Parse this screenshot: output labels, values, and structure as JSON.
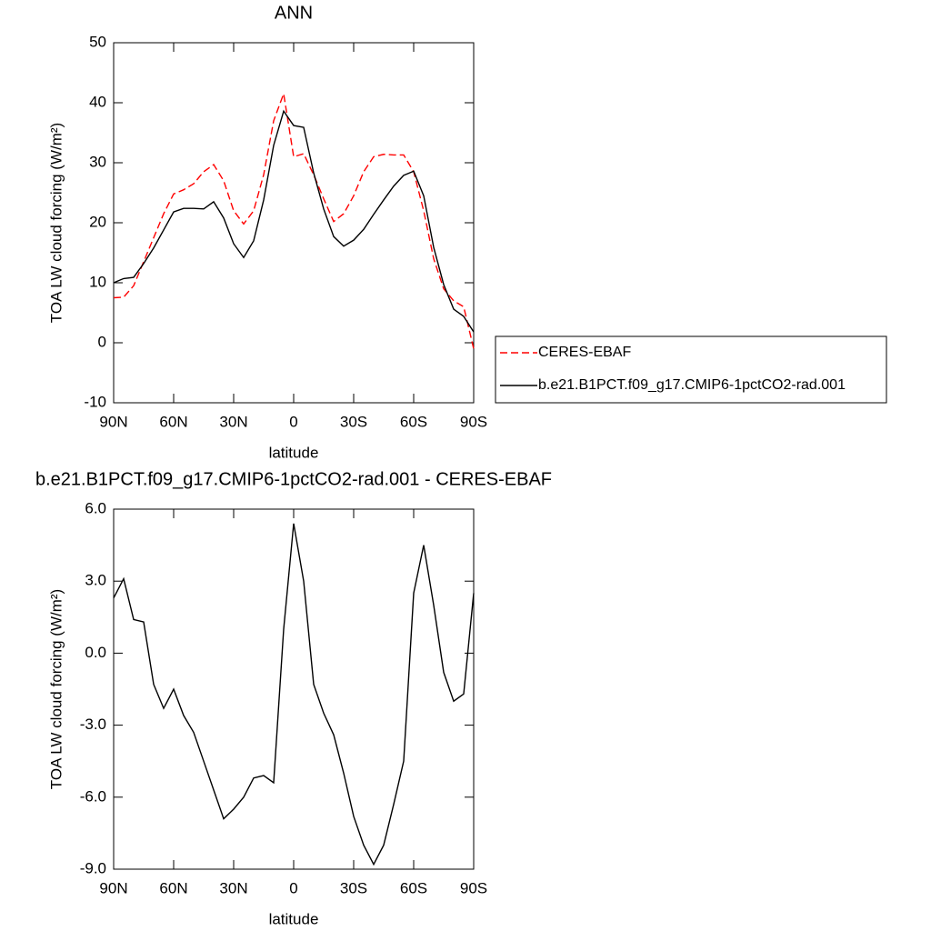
{
  "chart_data": [
    {
      "type": "line",
      "title": "ANN",
      "x_label": "latitude",
      "y_label": "TOA LW cloud forcing (W/m²)",
      "x": [
        90,
        85,
        80,
        75,
        70,
        65,
        60,
        55,
        50,
        45,
        40,
        35,
        30,
        25,
        20,
        15,
        10,
        5,
        0,
        -5,
        -10,
        -15,
        -20,
        -25,
        -30,
        -35,
        -40,
        -45,
        -50,
        -55,
        -60,
        -65,
        -70,
        -75,
        -80,
        -85,
        -90
      ],
      "series": [
        {
          "name": "CERES-EBAF",
          "color": "#ff0000",
          "dashed": true,
          "values": [
            7.5,
            7.6,
            9.5,
            13.5,
            17.5,
            21.5,
            24.8,
            25.5,
            26.5,
            28.5,
            29.7,
            27,
            22,
            19.8,
            22,
            28,
            37,
            41.5,
            31,
            31.5,
            28,
            24,
            20.2,
            21.5,
            24.5,
            28.5,
            31,
            31.4,
            31.3,
            31.3,
            28.5,
            22,
            14,
            9,
            7,
            6,
            -1
          ]
        },
        {
          "name": "b.e21.B1PCT.f09_g17.CMIP6-1pctCO2-rad.001",
          "color": "#000000",
          "dashed": false,
          "values": [
            10.0,
            10.7,
            10.9,
            13.2,
            15.8,
            18.8,
            21.8,
            22.4,
            22.4,
            22.3,
            23.5,
            20.8,
            16.5,
            14.2,
            17.0,
            23.8,
            32.9,
            38.6,
            36.2,
            35.9,
            28.3,
            22.3,
            17.7,
            16.1,
            17.1,
            18.9,
            21.4,
            23.8,
            26.1,
            27.9,
            28.6,
            24.5,
            15.9,
            9.7,
            5.6,
            4.4,
            1.8
          ]
        }
      ],
      "xlim": [
        90,
        -90
      ],
      "xticks": [
        {
          "value": 90,
          "label": "90N"
        },
        {
          "value": 60,
          "label": "60N"
        },
        {
          "value": 30,
          "label": "30N"
        },
        0,
        {
          "value": -30,
          "label": "30S"
        },
        {
          "value": -60,
          "label": "60S"
        },
        {
          "value": -90,
          "label": "90S"
        }
      ],
      "ylim": [
        -10,
        50
      ],
      "yticks": [
        -10,
        0,
        10,
        20,
        30,
        40,
        50
      ],
      "legend": "right"
    },
    {
      "type": "line",
      "title": "b.e21.B1PCT.f09_g17.CMIP6-1pctCO2-rad.001 - CERES-EBAF",
      "x_label": "latitude",
      "y_label": "TOA LW cloud forcing (W/m²)",
      "x": [
        90,
        85,
        80,
        75,
        70,
        65,
        60,
        55,
        50,
        45,
        40,
        35,
        30,
        25,
        20,
        15,
        10,
        5,
        0,
        -5,
        -10,
        -15,
        -20,
        -25,
        -30,
        -35,
        -40,
        -45,
        -50,
        -55,
        -60,
        -65,
        -70,
        -75,
        -80,
        -85,
        -90
      ],
      "values": [
        2.3,
        3.1,
        1.4,
        1.3,
        -1.3,
        -2.3,
        -1.5,
        -2.6,
        -3.3,
        -4.5,
        -5.7,
        -6.9,
        -6.5,
        -6.0,
        -5.2,
        -5.1,
        -5.4,
        1.0,
        5.4,
        3.0,
        -1.3,
        -2.5,
        -3.4,
        -5.0,
        -6.8,
        -8.0,
        -8.8,
        -8.0,
        -6.3,
        -4.5,
        2.5,
        4.5,
        2.0,
        -0.8,
        -2.0,
        -1.7,
        2.5
      ],
      "color": "#000000",
      "xlim": [
        90,
        -90
      ],
      "xticks": [
        {
          "value": 90,
          "label": "90N"
        },
        {
          "value": 60,
          "label": "60N"
        },
        {
          "value": 30,
          "label": "30N"
        },
        0,
        {
          "value": -30,
          "label": "30S"
        },
        {
          "value": -60,
          "label": "60S"
        },
        {
          "value": -90,
          "label": "90S"
        }
      ],
      "ylim": [
        -9,
        6
      ],
      "yticks": [
        {
          "value": -9,
          "label": "-9.0"
        },
        {
          "value": -6,
          "label": "-6.0"
        },
        {
          "value": -3,
          "label": "-3.0"
        },
        {
          "value": 0,
          "label": "0.0"
        },
        {
          "value": 3,
          "label": "3.0"
        },
        {
          "value": 6,
          "label": "6.0"
        }
      ]
    }
  ]
}
